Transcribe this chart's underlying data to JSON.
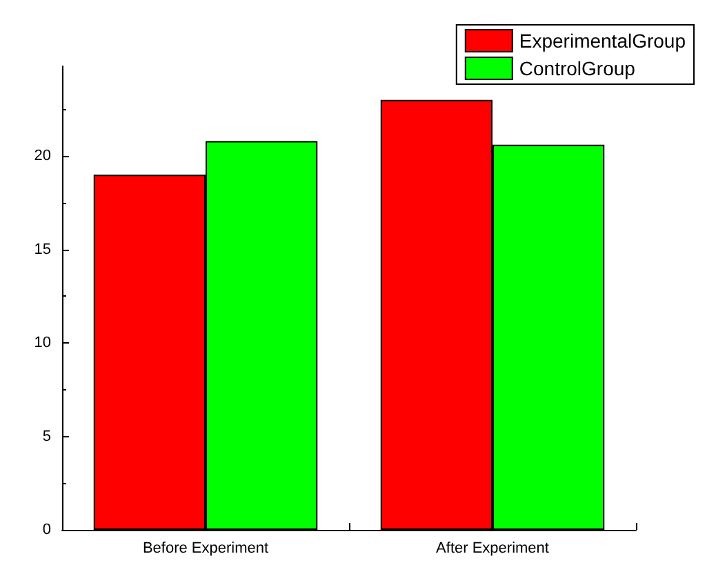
{
  "chart_data": {
    "type": "bar",
    "categories": [
      "Before Experiment",
      "After Experiment"
    ],
    "series": [
      {
        "name": "ExperimentalGroup",
        "color": "#ff0000",
        "values": [
          19,
          23
        ]
      },
      {
        "name": "ControlGroup",
        "color": "#00ff00",
        "values": [
          20.8,
          20.6
        ]
      }
    ],
    "ylim": [
      0,
      24.8
    ],
    "yticks": [
      0,
      5,
      10,
      15,
      20
    ],
    "grid": false,
    "legend": "top right"
  }
}
